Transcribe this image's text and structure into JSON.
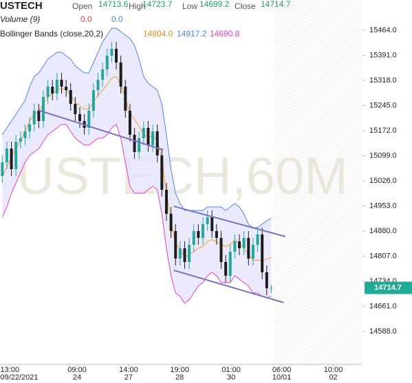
{
  "chart_data": {
    "type": "candlestick",
    "title": "USTECH",
    "watermark": "USTECH,60M",
    "header": {
      "open_label": "Open",
      "open": "14713.6",
      "high_label": "High",
      "high": "14723.7",
      "low_label": "Low",
      "low": "14699.2",
      "close_label": "Close",
      "close": "14714.7",
      "volume_label": "Volume (9)",
      "volume_values": [
        "0.0",
        "0.0"
      ],
      "bb_label": "Bollinger Bands (close,20,2)",
      "bb_values": [
        "14804.0",
        "14917.2",
        "14690.8"
      ]
    },
    "colors": {
      "up": "#26a69a",
      "down": "#1c1c1c",
      "upper": "#4a86e8",
      "middle": "#f0a030",
      "lower": "#e040c8",
      "band_fill": "#e6e4fb",
      "trend": "#7b72c0",
      "tag": "#22ab94"
    },
    "candles": {
      "open": [
        15040,
        15080,
        15120,
        15060,
        15140,
        15150,
        15170,
        15190,
        15230,
        15200,
        15270,
        15300,
        15280,
        15320,
        15300,
        15290,
        15250,
        15220,
        15200,
        15180,
        15230,
        15290,
        15320,
        15350,
        15390,
        15410,
        15370,
        15300,
        15230,
        15160,
        15110,
        15150,
        15180,
        15130,
        15170,
        15100,
        15000,
        14930,
        14880,
        14800,
        14830,
        14790,
        14840,
        14880,
        14860,
        14900,
        14920,
        14880,
        14860,
        14790,
        14750,
        14820,
        14850,
        14830,
        14860,
        14800,
        14840,
        14870,
        14760,
        14713.6
      ],
      "high": [
        15100,
        15140,
        15140,
        15160,
        15170,
        15190,
        15210,
        15250,
        15250,
        15290,
        15320,
        15320,
        15340,
        15340,
        15320,
        15310,
        15270,
        15240,
        15220,
        15250,
        15310,
        15340,
        15370,
        15410,
        15430,
        15430,
        15390,
        15320,
        15250,
        15180,
        15170,
        15200,
        15200,
        15190,
        15190,
        15120,
        15020,
        14950,
        14900,
        14850,
        14850,
        14860,
        14900,
        14900,
        14920,
        14940,
        14940,
        14900,
        14880,
        14810,
        14840,
        14870,
        14870,
        14880,
        14880,
        14860,
        14890,
        14890,
        14780,
        14723.7
      ],
      "low": [
        15020,
        15060,
        15040,
        15040,
        15120,
        15130,
        15150,
        15170,
        15180,
        15180,
        15250,
        15260,
        15260,
        15280,
        15270,
        15230,
        15200,
        15180,
        15160,
        15160,
        15210,
        15270,
        15300,
        15330,
        15370,
        15350,
        15280,
        15210,
        15140,
        15090,
        15090,
        15130,
        15110,
        15110,
        15080,
        14980,
        14910,
        14860,
        14780,
        14780,
        14770,
        14770,
        14820,
        14840,
        14840,
        14880,
        14860,
        14840,
        14770,
        14730,
        14730,
        14800,
        14810,
        14810,
        14780,
        14780,
        14820,
        14740,
        14693.6,
        14699.2
      ],
      "close": [
        15080,
        15120,
        15060,
        15140,
        15150,
        15170,
        15190,
        15230,
        15200,
        15270,
        15300,
        15280,
        15320,
        15300,
        15290,
        15250,
        15220,
        15200,
        15180,
        15230,
        15290,
        15320,
        15350,
        15390,
        15410,
        15370,
        15300,
        15230,
        15160,
        15110,
        15150,
        15180,
        15130,
        15170,
        15100,
        15000,
        14930,
        14880,
        14800,
        14830,
        14790,
        14840,
        14880,
        14860,
        14900,
        14920,
        14880,
        14860,
        14790,
        14750,
        14820,
        14850,
        14830,
        14860,
        14800,
        14840,
        14870,
        14760,
        14713.6,
        14714.7
      ]
    },
    "bands": {
      "upper": [
        15160,
        15180,
        15200,
        15220,
        15240,
        15260,
        15300,
        15330,
        15340,
        15360,
        15380,
        15390,
        15400,
        15400,
        15390,
        15380,
        15360,
        15350,
        15340,
        15340,
        15370,
        15400,
        15430,
        15450,
        15470,
        15470,
        15460,
        15450,
        15440,
        15420,
        15380,
        15330,
        15310,
        15300,
        15290,
        15250,
        15160,
        15060,
        14990,
        14960,
        14940,
        14940,
        14940,
        14940,
        14940,
        14950,
        14950,
        14950,
        14950,
        14940,
        14950,
        14960,
        14950,
        14930,
        14900,
        14890,
        14890,
        14900,
        14910,
        14917.2
      ],
      "middle": [
        15040,
        15065,
        15095,
        15120,
        15145,
        15170,
        15200,
        15220,
        15230,
        15250,
        15270,
        15280,
        15290,
        15295,
        15290,
        15275,
        15255,
        15245,
        15235,
        15235,
        15255,
        15275,
        15290,
        15305,
        15325,
        15330,
        15305,
        15265,
        15225,
        15205,
        15185,
        15160,
        15155,
        15155,
        15145,
        15090,
        14995,
        14905,
        14845,
        14825,
        14805,
        14810,
        14820,
        14830,
        14835,
        14850,
        14855,
        14850,
        14840,
        14835,
        14840,
        14855,
        14845,
        14830,
        14810,
        14795,
        14795,
        14795,
        14798,
        14804.0
      ],
      "lower": [
        14920,
        14950,
        14990,
        15020,
        15050,
        15080,
        15100,
        15110,
        15120,
        15140,
        15160,
        15170,
        15180,
        15190,
        15190,
        15170,
        15150,
        15140,
        15130,
        15130,
        15140,
        15150,
        15150,
        15160,
        15180,
        15190,
        15150,
        15080,
        15010,
        14990,
        14990,
        14990,
        15000,
        15010,
        15000,
        14930,
        14830,
        14750,
        14700,
        14690,
        14670,
        14680,
        14700,
        14720,
        14730,
        14750,
        14760,
        14750,
        14730,
        14730,
        14730,
        14750,
        14740,
        14730,
        14720,
        14700,
        14700,
        14690,
        14685,
        14690.8
      ]
    },
    "trendlines": [
      {
        "x": [
          7.8,
          35.3
        ],
        "y": [
          15232,
          15116
        ]
      },
      {
        "x": [
          37.6,
          62.1
        ],
        "y": [
          14952,
          14864
        ]
      },
      {
        "x": [
          37.6,
          61.7
        ],
        "y": [
          14766,
          14672
        ]
      }
    ],
    "xlim": [
      -0.5,
      79
    ],
    "ylim": [
      14498,
      15552
    ],
    "yticks": [
      {
        "value": 15464,
        "label": "15464.0"
      },
      {
        "value": 15391,
        "label": "15391.0"
      },
      {
        "value": 15318,
        "label": "15318.0"
      },
      {
        "value": 15245,
        "label": "15245.0"
      },
      {
        "value": 15172,
        "label": "15172.0"
      },
      {
        "value": 15099,
        "label": "15099.0"
      },
      {
        "value": 15026,
        "label": "15026.0"
      },
      {
        "value": 14953,
        "label": "14953.0"
      },
      {
        "value": 14880,
        "label": "14880.0"
      },
      {
        "value": 14807,
        "label": "14807.0"
      },
      {
        "value": 14734,
        "label": "14734.0"
      },
      {
        "value": 14661,
        "label": "14661.0"
      },
      {
        "value": 14588,
        "label": "14588.0"
      }
    ],
    "xticks": [
      {
        "value": 1.66,
        "label": "13:00"
      },
      {
        "value": 16.4,
        "label": "09:00"
      },
      {
        "value": 27.7,
        "label": "14:00"
      },
      {
        "value": 38.9,
        "label": "19:00"
      },
      {
        "value": 50.2,
        "label": "01:00"
      },
      {
        "value": 61.3,
        "label": "06:00"
      },
      {
        "value": 72.6,
        "label": "10:00"
      }
    ],
    "xtick_dates": [
      "09/22/2021",
      "24",
      "27",
      "28",
      "30",
      "10/01",
      "02"
    ]
  }
}
